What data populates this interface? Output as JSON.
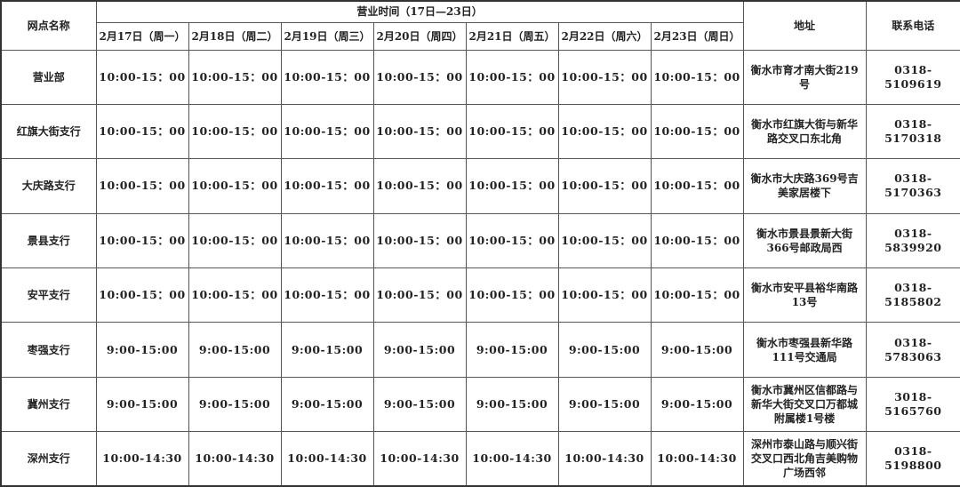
{
  "header": {
    "name_col": "网点名称",
    "hours_group": "营业时间（17日—23日）",
    "days": [
      "2月17日（周一）",
      "2月18日（周二）",
      "2月19日（周三）",
      "2月20日（周四）",
      "2月21日（周五）",
      "2月22日（周六）",
      "2月23日（周日）"
    ],
    "address_col": "地址",
    "phone_col": "联系电话"
  },
  "rows": [
    {
      "name": "营业部",
      "hours": [
        "10:00-15：00",
        "10:00-15：00",
        "10:00-15：00",
        "10:00-15：00",
        "10:00-15：00",
        "10:00-15：00",
        "10:00-15：00"
      ],
      "address": "衡水市育才南大街219号",
      "phone": "0318-5109619"
    },
    {
      "name": "红旗大街支行",
      "hours": [
        "10:00-15：00",
        "10:00-15：00",
        "10:00-15：00",
        "10:00-15：00",
        "10:00-15：00",
        "10:00-15：00",
        "10:00-15：00"
      ],
      "address": "衡水市红旗大街与新华路交叉口东北角",
      "phone": "0318-5170318"
    },
    {
      "name": "大庆路支行",
      "hours": [
        "10:00-15：00",
        "10:00-15：00",
        "10:00-15：00",
        "10:00-15：00",
        "10:00-15：00",
        "10:00-15：00",
        "10:00-15：00"
      ],
      "address": "衡水市大庆路369号吉美家居楼下",
      "phone": "0318-5170363"
    },
    {
      "name": "景县支行",
      "hours": [
        "10:00-15：00",
        "10:00-15：00",
        "10:00-15：00",
        "10:00-15：00",
        "10:00-15：00",
        "10:00-15：00",
        "10:00-15：00"
      ],
      "address": "衡水市景县景新大街366号邮政局西",
      "phone": "0318-5839920"
    },
    {
      "name": "安平支行",
      "hours": [
        "10:00-15：00",
        "10:00-15：00",
        "10:00-15：00",
        "10:00-15：00",
        "10:00-15：00",
        "10:00-15：00",
        "10:00-15：00"
      ],
      "address": "衡水市安平县裕华南路13号",
      "phone": "0318-5185802"
    },
    {
      "name": "枣强支行",
      "hours": [
        "9:00-15:00",
        "9:00-15:00",
        "9:00-15:00",
        "9:00-15:00",
        "9:00-15:00",
        "9:00-15:00",
        "9:00-15:00"
      ],
      "address": "衡水市枣强县新华路111号交通局",
      "phone": "0318-5783063"
    },
    {
      "name": "冀州支行",
      "hours": [
        "9:00-15:00",
        "9:00-15:00",
        "9:00-15:00",
        "9:00-15:00",
        "9:00-15:00",
        "9:00-15:00",
        "9:00-15:00"
      ],
      "address": "衡水市冀州区信都路与新华大街交叉口万都城附属楼1号楼",
      "phone": "3018-5165760"
    },
    {
      "name": "深州支行",
      "hours": [
        "10:00-14:30",
        "10:00-14:30",
        "10:00-14:30",
        "10:00-14:30",
        "10:00-14:30",
        "10:00-14:30",
        "10:00-14:30"
      ],
      "address": "深州市泰山路与顺兴街交叉口西北角吉美购物广场西邻",
      "phone": "0318-5198800"
    }
  ]
}
